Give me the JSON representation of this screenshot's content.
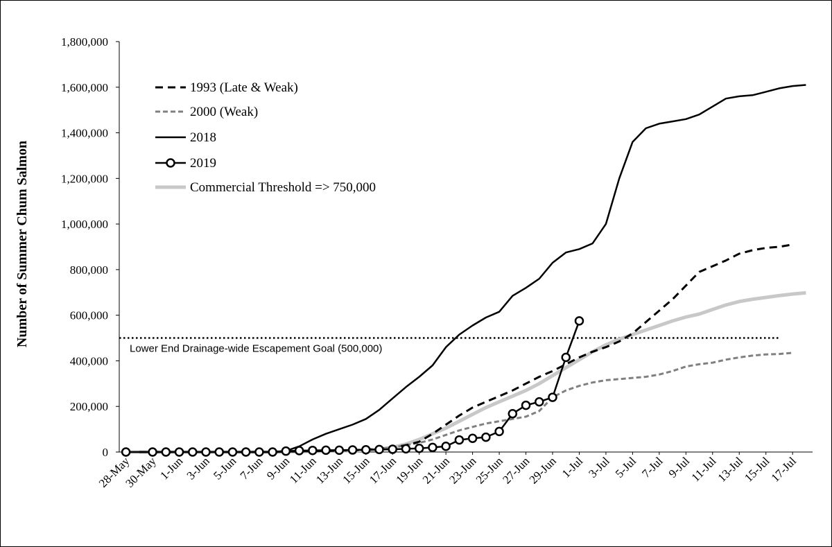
{
  "chart_data": {
    "type": "line",
    "title": "",
    "ylabel": "Number of Summer Chum Salmon",
    "xlabel": "",
    "ylim": [
      0,
      1800000
    ],
    "yticks": [
      0,
      200000,
      400000,
      600000,
      800000,
      1000000,
      1200000,
      1400000,
      1600000,
      1800000
    ],
    "ytick_labels": [
      "0",
      "200,000",
      "400,000",
      "600,000",
      "800,000",
      "1,000,000",
      "1,200,000",
      "1,400,000",
      "1,600,000",
      "1,800,000"
    ],
    "x_dates": [
      "28-May",
      "29-May",
      "30-May",
      "31-May",
      "1-Jun",
      "2-Jun",
      "3-Jun",
      "4-Jun",
      "5-Jun",
      "6-Jun",
      "7-Jun",
      "8-Jun",
      "9-Jun",
      "10-Jun",
      "11-Jun",
      "12-Jun",
      "13-Jun",
      "14-Jun",
      "15-Jun",
      "16-Jun",
      "17-Jun",
      "18-Jun",
      "19-Jun",
      "20-Jun",
      "21-Jun",
      "22-Jun",
      "23-Jun",
      "24-Jun",
      "25-Jun",
      "26-Jun",
      "27-Jun",
      "28-Jun",
      "29-Jun",
      "30-Jun",
      "1-Jul",
      "2-Jul",
      "3-Jul",
      "4-Jul",
      "5-Jul",
      "6-Jul",
      "7-Jul",
      "8-Jul",
      "9-Jul",
      "10-Jul",
      "11-Jul",
      "12-Jul",
      "13-Jul",
      "14-Jul",
      "15-Jul",
      "16-Jul",
      "17-Jul",
      "18-Jul"
    ],
    "x_tick_labels": [
      "28-May",
      "30-May",
      "1-Jun",
      "3-Jun",
      "5-Jun",
      "7-Jun",
      "9-Jun",
      "11-Jun",
      "13-Jun",
      "15-Jun",
      "17-Jun",
      "19-Jun",
      "21-Jun",
      "23-Jun",
      "25-Jun",
      "27-Jun",
      "29-Jun",
      "1-Jul",
      "3-Jul",
      "5-Jul",
      "7-Jul",
      "9-Jul",
      "11-Jul",
      "13-Jul",
      "15-Jul",
      "17-Jul"
    ],
    "series": [
      {
        "name": "1993 (Late & Weak)",
        "style": "dashed",
        "color": "#000000",
        "x_start": "29-May",
        "values": [
          0,
          0,
          0,
          0,
          0,
          0,
          0,
          0,
          0,
          0,
          0,
          2000,
          3000,
          4000,
          5000,
          6000,
          8000,
          10000,
          15000,
          20000,
          30000,
          45000,
          80000,
          120000,
          160000,
          195000,
          220000,
          245000,
          270000,
          300000,
          330000,
          355000,
          385000,
          415000,
          440000,
          460000,
          485000,
          520000,
          570000,
          620000,
          670000,
          730000,
          790000,
          815000,
          840000,
          870000,
          885000,
          895000,
          900000,
          910000
        ]
      },
      {
        "name": "2000 (Weak)",
        "style": "dashed",
        "color": "#808080",
        "x_start": "29-May",
        "values": [
          0,
          0,
          0,
          0,
          0,
          0,
          0,
          0,
          0,
          0,
          0,
          1000,
          2000,
          3000,
          4000,
          5000,
          7000,
          10000,
          15000,
          20000,
          30000,
          40000,
          55000,
          75000,
          95000,
          110000,
          125000,
          135000,
          145000,
          155000,
          180000,
          240000,
          270000,
          290000,
          305000,
          315000,
          320000,
          325000,
          330000,
          340000,
          355000,
          375000,
          385000,
          392000,
          405000,
          415000,
          423000,
          428000,
          430000,
          435000
        ]
      },
      {
        "name": "2018",
        "style": "solid",
        "color": "#000000",
        "x_start": "28-May",
        "values": [
          0,
          0,
          0,
          0,
          0,
          0,
          0,
          0,
          0,
          0,
          0,
          0,
          5000,
          25000,
          55000,
          80000,
          100000,
          120000,
          145000,
          185000,
          235000,
          285000,
          330000,
          380000,
          460000,
          515000,
          555000,
          590000,
          615000,
          685000,
          720000,
          760000,
          830000,
          875000,
          890000,
          915000,
          1000000,
          1200000,
          1360000,
          1420000,
          1440000,
          1450000,
          1460000,
          1480000,
          1515000,
          1550000,
          1560000,
          1565000,
          1580000,
          1595000,
          1605000,
          1610000
        ]
      },
      {
        "name": "2019",
        "style": "solid-markers",
        "color": "#000000",
        "x_start": "28-May",
        "values": [
          0,
          null,
          0,
          0,
          0,
          0,
          0,
          0,
          0,
          0,
          0,
          0,
          4000,
          6000,
          7000,
          8000,
          8000,
          9000,
          10000,
          11000,
          12000,
          14000,
          16000,
          20000,
          25000,
          53000,
          60000,
          65000,
          90000,
          168000,
          205000,
          220000,
          240000,
          415000,
          575000
        ]
      },
      {
        "name": "Commercial Threshold => 750,000",
        "style": "thick",
        "color": "#c8c8c8",
        "x_start": "28-May",
        "values": [
          0,
          0,
          0,
          0,
          0,
          0,
          0,
          0,
          0,
          0,
          0,
          0,
          1000,
          2000,
          3000,
          4000,
          5000,
          6000,
          8000,
          12000,
          20000,
          35000,
          55000,
          80000,
          105000,
          135000,
          165000,
          195000,
          220000,
          245000,
          270000,
          300000,
          335000,
          370000,
          405000,
          440000,
          470000,
          495000,
          515000,
          535000,
          555000,
          575000,
          592000,
          605000,
          625000,
          645000,
          660000,
          670000,
          678000,
          686000,
          693000,
          698000
        ]
      }
    ],
    "reference_line": {
      "label": "Lower End Drainage-wide Escapement Goal (500,000)",
      "value": 500000,
      "x_from": "28-May",
      "x_to": "16-Jul",
      "style": "dotted"
    },
    "legend_placement": "top-left",
    "grid": false
  }
}
